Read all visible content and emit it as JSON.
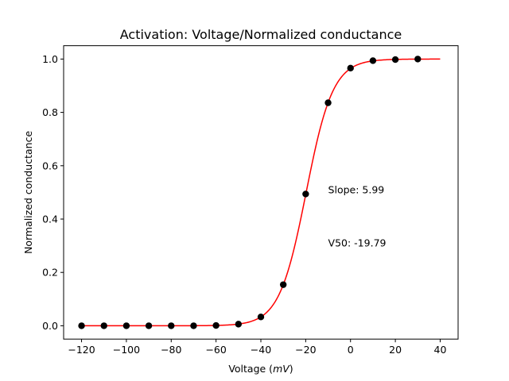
{
  "chart_data": {
    "type": "scatter",
    "title": "Activation: Voltage/Normalized conductance",
    "xlabel_prefix": "Voltage (",
    "xlabel_unit": "mV",
    "xlabel_suffix": ")",
    "ylabel": "Normalized conductance",
    "xlim": [
      -128,
      48
    ],
    "ylim": [
      -0.05,
      1.05
    ],
    "xticks": [
      -120,
      -100,
      -80,
      -60,
      -40,
      -20,
      0,
      20,
      40
    ],
    "xtick_labels": [
      "−120",
      "−100",
      "−80",
      "−60",
      "−40",
      "−20",
      "0",
      "20",
      "40"
    ],
    "yticks": [
      0.0,
      0.2,
      0.4,
      0.6,
      0.8,
      1.0
    ],
    "ytick_labels": [
      "0.0",
      "0.2",
      "0.4",
      "0.6",
      "0.8",
      "1.0"
    ],
    "grid": false,
    "series": [
      {
        "kind": "points",
        "color": "#000000",
        "x": [
          -120,
          -110,
          -100,
          -90,
          -80,
          -70,
          -60,
          -50,
          -40,
          -30,
          -20,
          -10,
          0,
          10,
          20,
          30
        ],
        "y": [
          0.0,
          0.0,
          0.0,
          0.0,
          0.0,
          0.0,
          0.001,
          0.006,
          0.033,
          0.154,
          0.494,
          0.836,
          0.966,
          0.994,
          0.998,
          1.0
        ]
      },
      {
        "kind": "fit",
        "color": "#ff0000",
        "fit": "boltzmann",
        "v50": -19.79,
        "slope": 5.99,
        "x_range": [
          -120,
          40
        ]
      }
    ],
    "annotations": [
      {
        "text": "Slope: 5.99",
        "x": -10,
        "y": 0.51
      },
      {
        "text": "V50: -19.79",
        "x": -10,
        "y": 0.31
      }
    ]
  }
}
